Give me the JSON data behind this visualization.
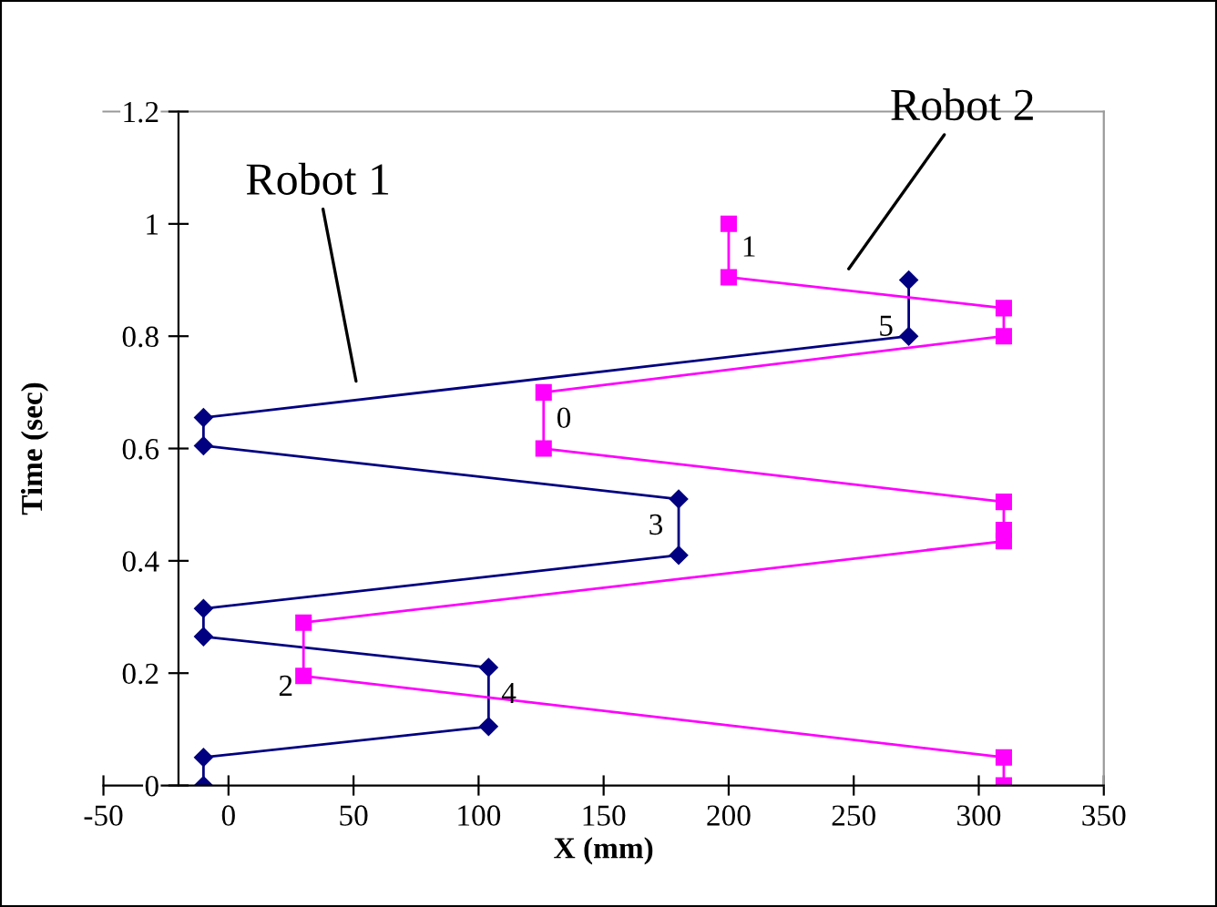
{
  "chart_data": {
    "type": "line",
    "xlabel": "X (mm)",
    "ylabel": "Time (sec)",
    "xlim": [
      -50,
      350
    ],
    "xticks": [
      -50,
      0,
      50,
      100,
      150,
      200,
      250,
      300,
      350
    ],
    "ylim": [
      0,
      1.2
    ],
    "yticks": [
      0,
      0.2,
      0.4,
      0.6,
      0.8,
      1,
      1.2
    ],
    "grid": false,
    "line_style": "solid",
    "series": [
      {
        "name": "Robot 1",
        "color": "#000080",
        "marker": "diamond",
        "x": [
          272,
          272,
          -10,
          -10,
          180,
          180,
          -10,
          -10,
          104,
          104,
          -10,
          -10
        ],
        "values": [
          0.9,
          0.8,
          0.655,
          0.605,
          0.51,
          0.41,
          0.315,
          0.265,
          0.21,
          0.105,
          0.05,
          0
        ]
      },
      {
        "name": "Robot 2",
        "color": "#ff00ff",
        "marker": "square",
        "x": [
          200,
          200,
          310,
          310,
          126,
          126,
          310,
          310,
          310,
          30,
          30,
          310,
          310
        ],
        "values": [
          1.0,
          0.905,
          0.85,
          0.8,
          0.7,
          0.6,
          0.505,
          0.455,
          0.435,
          0.29,
          0.195,
          0.05,
          0
        ]
      }
    ],
    "annotations": [
      {
        "text": "0",
        "x": 126,
        "y": 0.65
      },
      {
        "text": "1",
        "x": 200,
        "y": 0.955
      },
      {
        "text": "2",
        "x": 30,
        "y": 0.2
      },
      {
        "text": "3",
        "x": 180,
        "y": 0.46
      },
      {
        "text": "4",
        "x": 104,
        "y": 0.16
      },
      {
        "text": "5",
        "x": 272,
        "y": 0.85
      }
    ]
  }
}
